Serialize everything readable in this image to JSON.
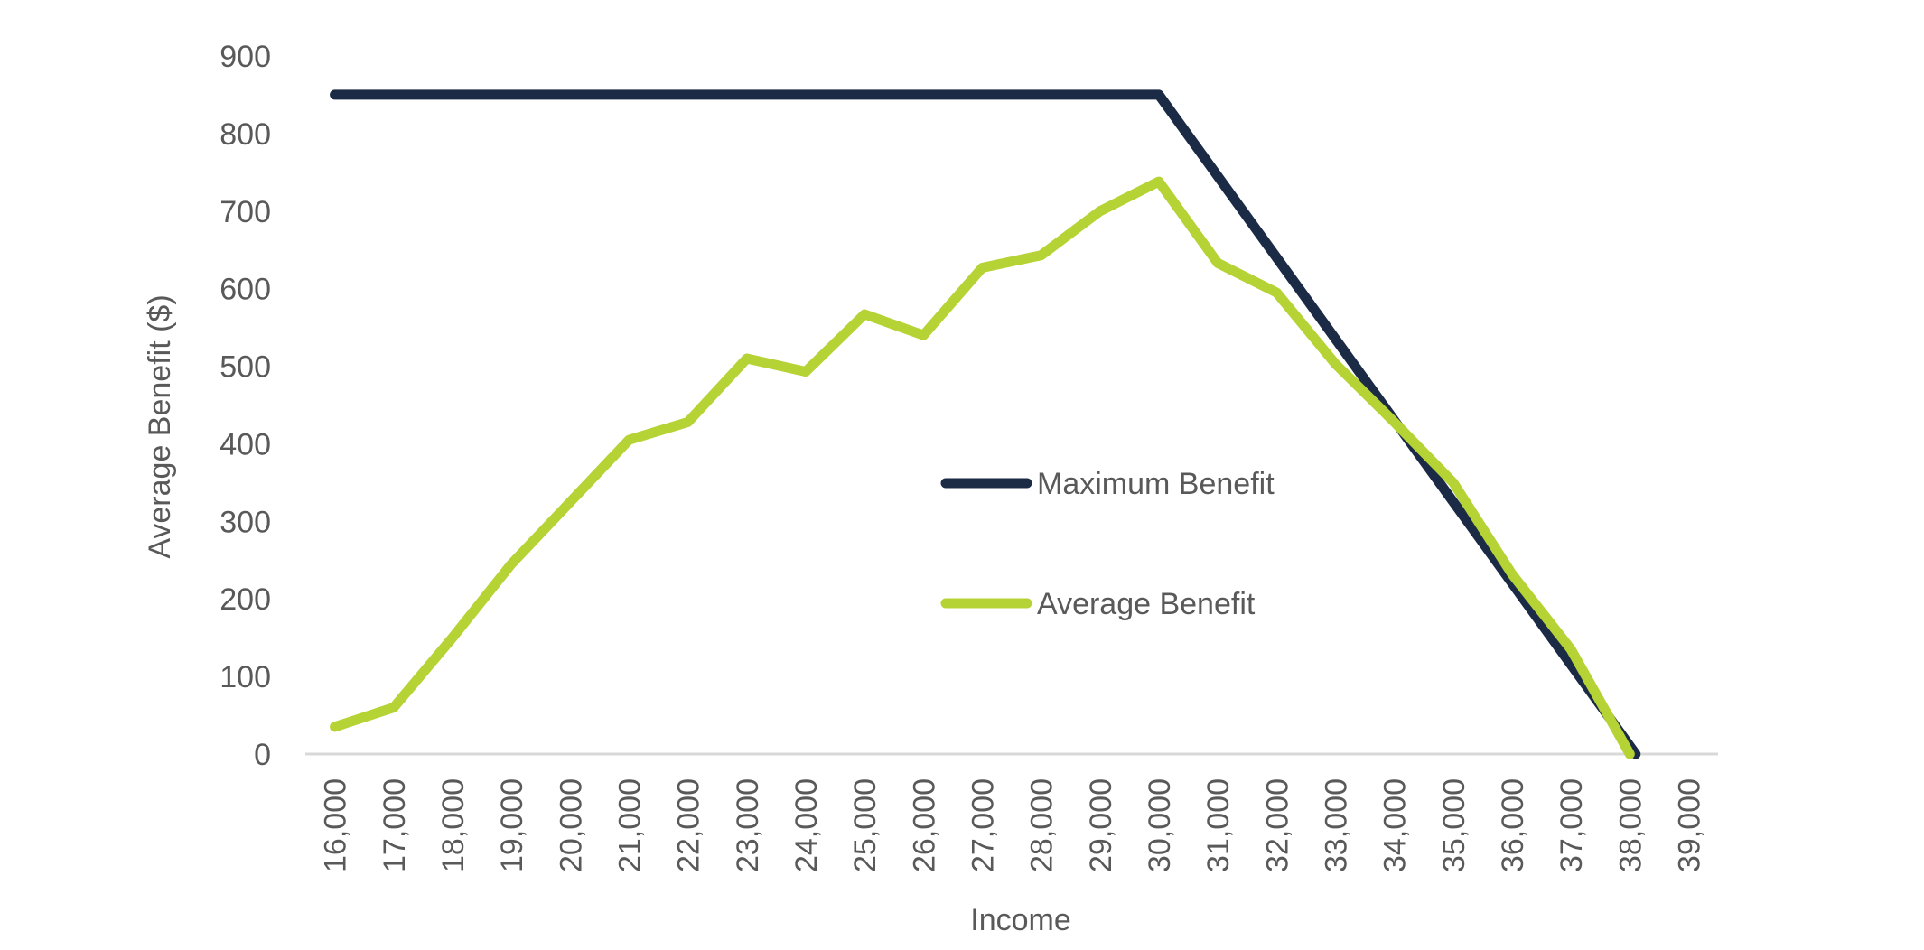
{
  "chart_data": {
    "type": "line",
    "title": "",
    "xlabel": "Income",
    "ylabel": "Average Benefit ($)",
    "categories": [
      "16,000",
      "17,000",
      "18,000",
      "19,000",
      "20,000",
      "21,000",
      "22,000",
      "23,000",
      "24,000",
      "25,000",
      "26,000",
      "27,000",
      "28,000",
      "29,000",
      "30,000",
      "31,000",
      "32,000",
      "33,000",
      "34,000",
      "35,000",
      "36,000",
      "37,000",
      "38,000",
      "39,000"
    ],
    "x": [
      16000,
      17000,
      18000,
      19000,
      20000,
      21000,
      22000,
      23000,
      24000,
      25000,
      26000,
      27000,
      28000,
      29000,
      30000,
      31000,
      32000,
      33000,
      34000,
      35000,
      36000,
      37000,
      38000,
      39000
    ],
    "xlim": [
      15500,
      39500
    ],
    "ylim": [
      0,
      900
    ],
    "yticks": [
      0,
      100,
      200,
      300,
      400,
      500,
      600,
      700,
      800,
      900
    ],
    "yticklabels": [
      "0",
      "100",
      "200",
      "300",
      "400",
      "500",
      "600",
      "700",
      "800",
      "900"
    ],
    "grid": false,
    "legend_position": "center",
    "series": [
      {
        "name": "Maximum Benefit",
        "color": "#1b2a45",
        "points": [
          [
            16000,
            850
          ],
          [
            30000,
            850
          ],
          [
            38100,
            0
          ]
        ]
      },
      {
        "name": "Average Benefit",
        "color": "#b5d334",
        "points": [
          [
            16000,
            35
          ],
          [
            17000,
            60
          ],
          [
            18000,
            150
          ],
          [
            19000,
            245
          ],
          [
            20000,
            325
          ],
          [
            21000,
            405
          ],
          [
            22000,
            428
          ],
          [
            23000,
            510
          ],
          [
            24000,
            493
          ],
          [
            25000,
            567
          ],
          [
            26000,
            540
          ],
          [
            27000,
            627
          ],
          [
            28000,
            643
          ],
          [
            29000,
            700
          ],
          [
            30000,
            738
          ],
          [
            31000,
            633
          ],
          [
            32000,
            595
          ],
          [
            33000,
            503
          ],
          [
            34000,
            428
          ],
          [
            35000,
            350
          ],
          [
            36000,
            232
          ],
          [
            37000,
            135
          ],
          [
            38000,
            0
          ]
        ]
      }
    ]
  }
}
